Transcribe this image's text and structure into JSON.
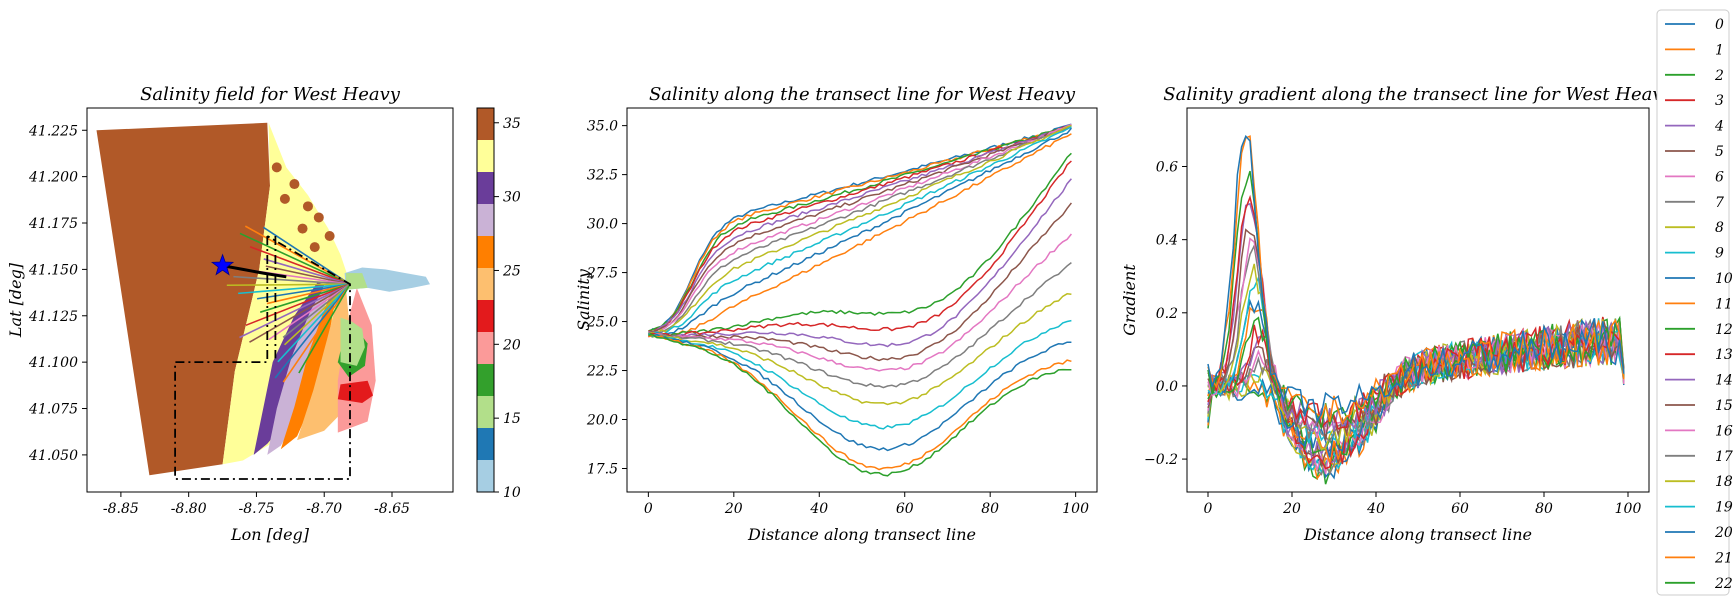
{
  "chart_data": [
    {
      "type": "scatter",
      "title": "Salinity field for West Heavy",
      "xlabel": "Lon [deg]",
      "ylabel": "Lat [deg]",
      "xlim": [
        -8.875,
        -8.605
      ],
      "ylim": [
        41.03,
        41.237
      ],
      "xticks": [
        "-8.85",
        "-8.80",
        "-8.75",
        "-8.70",
        "-8.65"
      ],
      "xtick_values": [
        -8.85,
        -8.8,
        -8.75,
        -8.7,
        -8.65
      ],
      "yticks": [
        "41.050",
        "41.075",
        "41.100",
        "41.125",
        "41.150",
        "41.175",
        "41.200",
        "41.225"
      ],
      "ytick_values": [
        41.05,
        41.075,
        41.1,
        41.125,
        41.15,
        41.175,
        41.2,
        41.225
      ],
      "colorbar": {
        "ticks": [
          "10",
          "15",
          "20",
          "25",
          "30",
          "35"
        ],
        "tick_values": [
          10,
          15,
          20,
          25,
          30,
          35
        ],
        "range": [
          10,
          36
        ],
        "colors": [
          "#a6cee3",
          "#1f78b4",
          "#b2df8a",
          "#33a02c",
          "#fb9a99",
          "#e31a1c",
          "#fdbf6f",
          "#ff7f00",
          "#cab2d6",
          "#6a3d9a",
          "#ffff99",
          "#b15928"
        ]
      },
      "star": {
        "lon": -8.775,
        "lat": 41.152,
        "color": "#0000ff"
      },
      "fan_origin": {
        "lon": -8.681,
        "lat": 41.142
      },
      "transects": 23
    },
    {
      "type": "line",
      "title": "Salinity along the transect line for West Heavy",
      "xlabel": "Distance along transect line",
      "ylabel": "Salinity",
      "xlim": [
        -5,
        105
      ],
      "ylim": [
        16.3,
        35.9
      ],
      "xticks": [
        "0",
        "20",
        "40",
        "60",
        "80",
        "100"
      ],
      "xtick_values": [
        0,
        20,
        40,
        60,
        80,
        100
      ],
      "yticks": [
        "17.5",
        "20.0",
        "22.5",
        "25.0",
        "27.5",
        "30.0",
        "32.5",
        "35.0"
      ],
      "ytick_values": [
        17.5,
        20.0,
        22.5,
        25.0,
        27.5,
        30.0,
        32.5,
        35.0
      ],
      "start_value": 24.3,
      "series_end_values": [
        35.0,
        35.0,
        35.0,
        35.0,
        35.0,
        35.0,
        35.0,
        35.0,
        35.0,
        34.9,
        34.8,
        34.6,
        34.4,
        34.0,
        33.0,
        31.7,
        30.1,
        28.5,
        27.0,
        25.6,
        24.5,
        23.5,
        23.1
      ],
      "series_mid_values": [
        31.7,
        31.5,
        31.2,
        30.9,
        30.5,
        30.1,
        29.6,
        29.1,
        28.5,
        27.8,
        27.0,
        26.2,
        25.4,
        24.6,
        23.8,
        23.1,
        22.5,
        21.7,
        20.8,
        19.6,
        18.5,
        17.5,
        17.2
      ]
    },
    {
      "type": "line",
      "title": "Salinity gradient along the transect line for West Heavy",
      "xlabel": "Distance along transect line",
      "ylabel": "Gradient",
      "xlim": [
        -5,
        105
      ],
      "ylim": [
        -0.29,
        0.76
      ],
      "xticks": [
        "0",
        "20",
        "40",
        "60",
        "80",
        "100"
      ],
      "xtick_values": [
        0,
        20,
        40,
        60,
        80,
        100
      ],
      "yticks": [
        "−0.2",
        "0.0",
        "0.2",
        "0.4",
        "0.6"
      ],
      "ytick_values": [
        -0.2,
        0.0,
        0.2,
        0.4,
        0.6
      ],
      "series_peak_values": [
        0.71,
        0.68,
        0.58,
        0.52,
        0.5,
        0.45,
        0.42,
        0.38,
        0.33,
        0.3,
        0.26,
        0.24,
        0.21,
        0.18,
        0.16,
        0.14,
        0.12,
        0.1,
        0.08,
        0.06,
        0.04,
        0.03,
        0.02
      ],
      "series_trough_values": [
        -0.06,
        -0.07,
        -0.08,
        -0.09,
        -0.1,
        -0.11,
        -0.12,
        -0.13,
        -0.14,
        -0.15,
        -0.16,
        -0.17,
        -0.18,
        -0.19,
        -0.19,
        -0.2,
        -0.2,
        -0.21,
        -0.21,
        -0.22,
        -0.22,
        -0.23,
        -0.23
      ]
    }
  ],
  "legend": {
    "labels": [
      "0",
      "1",
      "2",
      "3",
      "4",
      "5",
      "6",
      "7",
      "8",
      "9",
      "10",
      "11",
      "12",
      "13",
      "14",
      "15",
      "16",
      "17",
      "18",
      "19",
      "20",
      "21",
      "22"
    ],
    "colors": [
      "#1f77b4",
      "#ff7f0e",
      "#2ca02c",
      "#d62728",
      "#9467bd",
      "#8c564b",
      "#e377c2",
      "#7f7f7f",
      "#bcbd22",
      "#17becf"
    ]
  }
}
